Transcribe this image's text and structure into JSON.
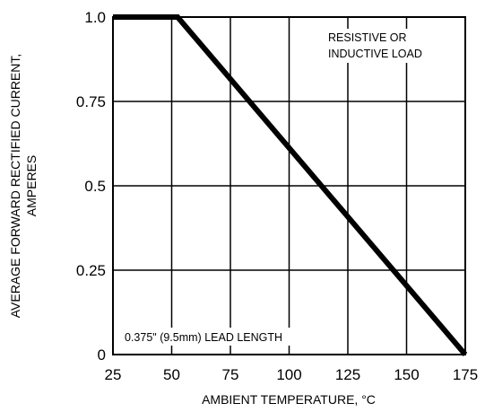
{
  "chart_data": {
    "type": "line",
    "title": "",
    "xlabel": "AMBIENT TEMPERATURE, °C",
    "ylabel_lines": [
      "AVERAGE FORWARD RECTIFIED CURRENT,",
      "AMPERES"
    ],
    "x_ticks": [
      "25",
      "50",
      "75",
      "100",
      "125",
      "150",
      "175"
    ],
    "y_ticks": [
      "0",
      "0.25",
      "0.5",
      "0.75",
      "1.0"
    ],
    "xlim": [
      25,
      175
    ],
    "ylim": [
      0,
      1.0
    ],
    "grid": true,
    "series": [
      {
        "x": [
          25,
          52.5,
          175
        ],
        "y": [
          1.0,
          1.0,
          0
        ]
      }
    ],
    "annotations": {
      "load_line1": "RESISTIVE OR",
      "load_line2": "INDUCTIVE LOAD",
      "lead_length": "0.375\" (9.5mm) LEAD LENGTH"
    }
  }
}
